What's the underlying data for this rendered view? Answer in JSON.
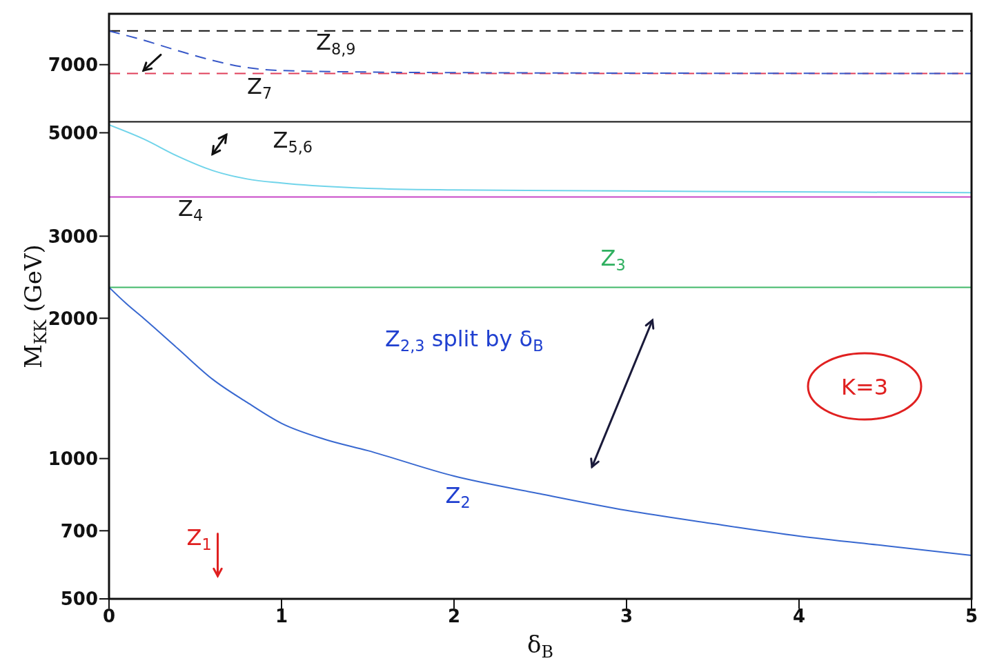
{
  "chart_data": {
    "type": "line",
    "xlabel": "δ$_{B}$",
    "ylabel": "M$_{KK}$ (GeV)",
    "log": "y",
    "xlim": [
      0,
      5
    ],
    "xticks": [
      0,
      1,
      2,
      3,
      4,
      5
    ],
    "ylim": [
      500,
      9000
    ],
    "yticks": [
      500,
      700,
      1000,
      2000,
      3000,
      5000,
      7000
    ],
    "marker": "none",
    "series": [
      {
        "color": "#111111",
        "line_style": "dashed",
        "x": [
          0,
          5
        ],
        "values": [
          8270,
          8270
        ]
      },
      {
        "color": "#e0405a",
        "line_style": "dashed",
        "x": [
          0,
          5
        ],
        "values": [
          6700,
          6700
        ]
      },
      {
        "color": "#3858c8",
        "line_style": "dashed",
        "x": [
          0,
          0.2,
          0.4,
          0.6,
          0.8,
          1,
          1.5,
          2,
          5
        ],
        "values": [
          8270,
          7900,
          7500,
          7150,
          6900,
          6800,
          6750,
          6730,
          6700
        ]
      },
      {
        "color": "#111111",
        "line_style": "solid",
        "x": [
          0,
          5
        ],
        "values": [
          5280,
          5280
        ]
      },
      {
        "color": "#70d4ea",
        "line_style": "solid",
        "x": [
          0,
          0.2,
          0.4,
          0.6,
          0.8,
          1,
          1.5,
          2,
          3,
          5
        ],
        "values": [
          5200,
          4850,
          4450,
          4150,
          3980,
          3900,
          3800,
          3770,
          3750,
          3720
        ]
      },
      {
        "color": "#c848c8",
        "line_style": "solid",
        "x": [
          0,
          5
        ],
        "values": [
          3640,
          3640
        ]
      },
      {
        "color": "#40b868",
        "line_style": "solid",
        "x": [
          0,
          5
        ],
        "values": [
          2330,
          2330
        ]
      },
      {
        "color": "#3868d0",
        "line_style": "solid",
        "x": [
          0,
          0.1,
          0.2,
          0.4,
          0.6,
          0.8,
          1,
          1.25,
          1.5,
          2,
          2.5,
          3,
          3.5,
          4,
          4.5,
          5
        ],
        "values": [
          2330,
          2150,
          2000,
          1720,
          1480,
          1320,
          1190,
          1100,
          1040,
          917,
          840,
          774,
          725,
          682,
          650,
          620
        ]
      }
    ],
    "annotations": [
      "Z$_{8,9}$",
      "Z$_{7}$",
      "Z$_{5,6}$",
      "Z$_{4}$",
      "Z$_{3}$",
      "Z$_{2,3}$ split by δ$_{B}$",
      "Z$_{2}$",
      "Z$_{1}$",
      "K=3"
    ]
  }
}
